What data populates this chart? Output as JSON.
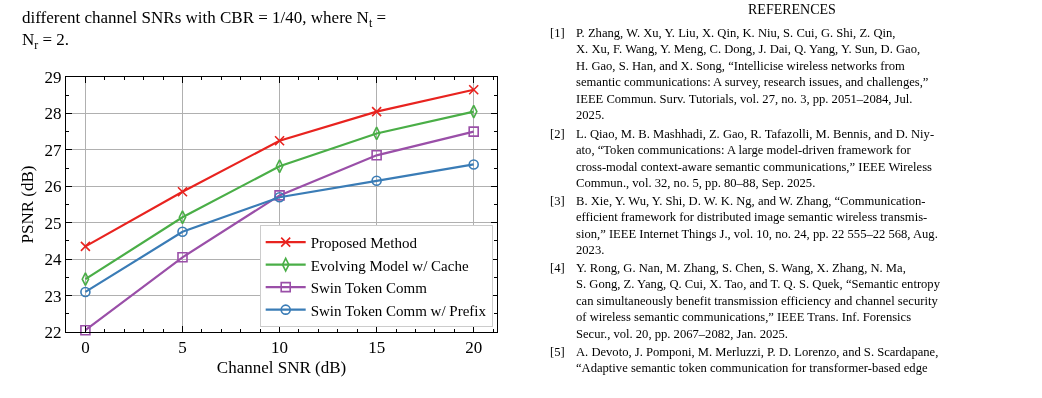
{
  "chart_data": {
    "type": "line",
    "x": [
      0,
      5,
      10,
      15,
      20
    ],
    "xlabel": "Channel SNR (dB)",
    "ylabel": "PSNR (dB)",
    "xlim": [
      -1,
      21.2
    ],
    "xticks": [
      0,
      5,
      10,
      15,
      20
    ],
    "ylim": [
      22,
      29
    ],
    "yticks": [
      22,
      23,
      24,
      25,
      26,
      27,
      28,
      29
    ],
    "grid": true,
    "legend": "bottom right",
    "line_style": "solid",
    "series": [
      {
        "name": "Proposed Method",
        "color": "#e8231f",
        "marker": "cross",
        "values": [
          24.35,
          25.85,
          27.25,
          28.05,
          28.65
        ]
      },
      {
        "name": "Evolving Model w/ Cache",
        "color": "#4aae47",
        "marker": "diamond",
        "values": [
          23.45,
          25.15,
          26.55,
          27.45,
          28.05
        ]
      },
      {
        "name": "Swin Token Comm",
        "color": "#9a4fa8",
        "marker": "square",
        "values": [
          22.05,
          24.05,
          25.75,
          26.85,
          27.5
        ]
      },
      {
        "name": "Swin Token Comm w/ Prefix",
        "color": "#3a7cb6",
        "marker": "circle",
        "values": [
          23.1,
          24.75,
          25.7,
          26.15,
          26.6
        ]
      }
    ],
    "annotations": [
      "different channel SNRs with CBR = 1/40, where N$_{t}$ =",
      "N$_{r}$ = 2.",
      "REFERENCES",
      "[1] P. Zhang, W. Xu, Y. Liu, X. Qin, K. Niu, S. Cui, G. Shi, Z. Qin,\nX. Xu, F. Wang, Y. Meng, C. Dong, J. Dai, Q. Yang, Y. Sun, D. Gao,\nH. Gao, S. Han, and X. Song, “Intellicise wireless networks from\nsemantic communications: A survey, research issues, and challenges,”\nIEEE Commun. Surv. Tutorials, vol. 27, no. 3, pp. 2051–2084, Jul.\n2025.",
      "[2] L. Qiao, M. B. Mashhadi, Z. Gao, R. Tafazolli, M. Bennis, and D. Niy-\nato, “Token communications: A large model-driven framework for\ncross-modal context-aware semantic communications,” IEEE Wireless\nCommun., vol. 32, no. 5, pp. 80–88, Sep. 2025.",
      "[3] B. Xie, Y. Wu, Y. Shi, D. W. K. Ng, and W. Zhang, “Communication-\nefficient framework for distributed image semantic wireless transmis-\nsion,” IEEE Internet Things J., vol. 10, no. 24, pp. 22 555–22 568, Aug.\n2023.",
      "[4] Y. Rong, G. Nan, M. Zhang, S. Chen, S. Wang, X. Zhang, N. Ma,\nS. Gong, Z. Yang, Q. Cui, X. Tao, and T. Q. S. Quek, “Semantic entropy\ncan simultaneously benefit transmission efficiency and channel security\nof wireless semantic communications,” IEEE Trans. Inf. Forensics\nSecur., vol. 20, pp. 2067–2082, Jan. 2025.",
      "[5] A. Devoto, J. Pomponi, M. Merluzzi, P. D. Lorenzo, and S. Scardapane,\n“Adaptive semantic token communication for transformer-based edge"
    ]
  }
}
